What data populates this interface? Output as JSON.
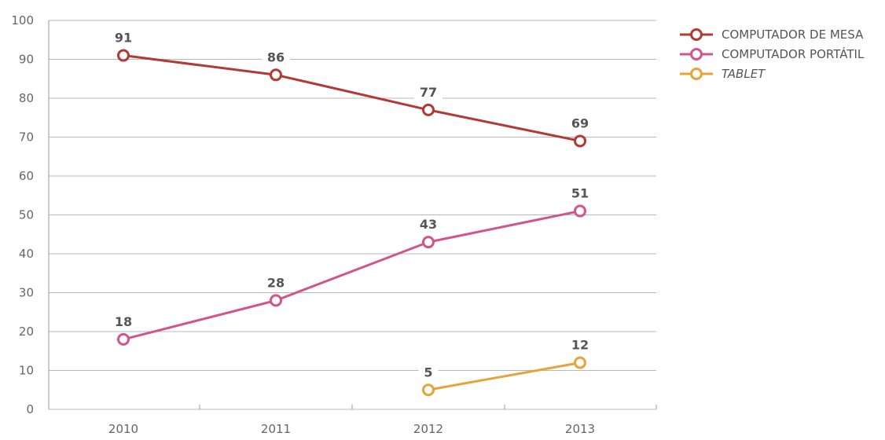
{
  "chart_data": {
    "type": "line",
    "title": "",
    "xlabel": "",
    "ylabel": "",
    "x": [
      "2010",
      "2011",
      "2012",
      "2013"
    ],
    "ylim": [
      0,
      100
    ],
    "yticks": [
      0,
      10,
      20,
      30,
      40,
      50,
      60,
      70,
      80,
      90,
      100
    ],
    "grid": "horizontal",
    "legend_position": "top-right",
    "series": [
      {
        "name": "COMPUTADOR DE MESA",
        "color": "#b23a33",
        "italic": false,
        "values": [
          91,
          86,
          77,
          69
        ],
        "labels": [
          "91",
          "86",
          "77",
          "69"
        ]
      },
      {
        "name": "COMPUTADOR PORTÁTIL",
        "color": "#d1558c",
        "italic": false,
        "values": [
          18,
          28,
          43,
          51
        ],
        "labels": [
          "18",
          "28",
          "43",
          "51"
        ]
      },
      {
        "name": "TABLET",
        "color": "#e8a23a",
        "italic": true,
        "values": [
          null,
          null,
          5,
          12
        ],
        "labels": [
          null,
          null,
          "5",
          "12"
        ]
      }
    ]
  }
}
